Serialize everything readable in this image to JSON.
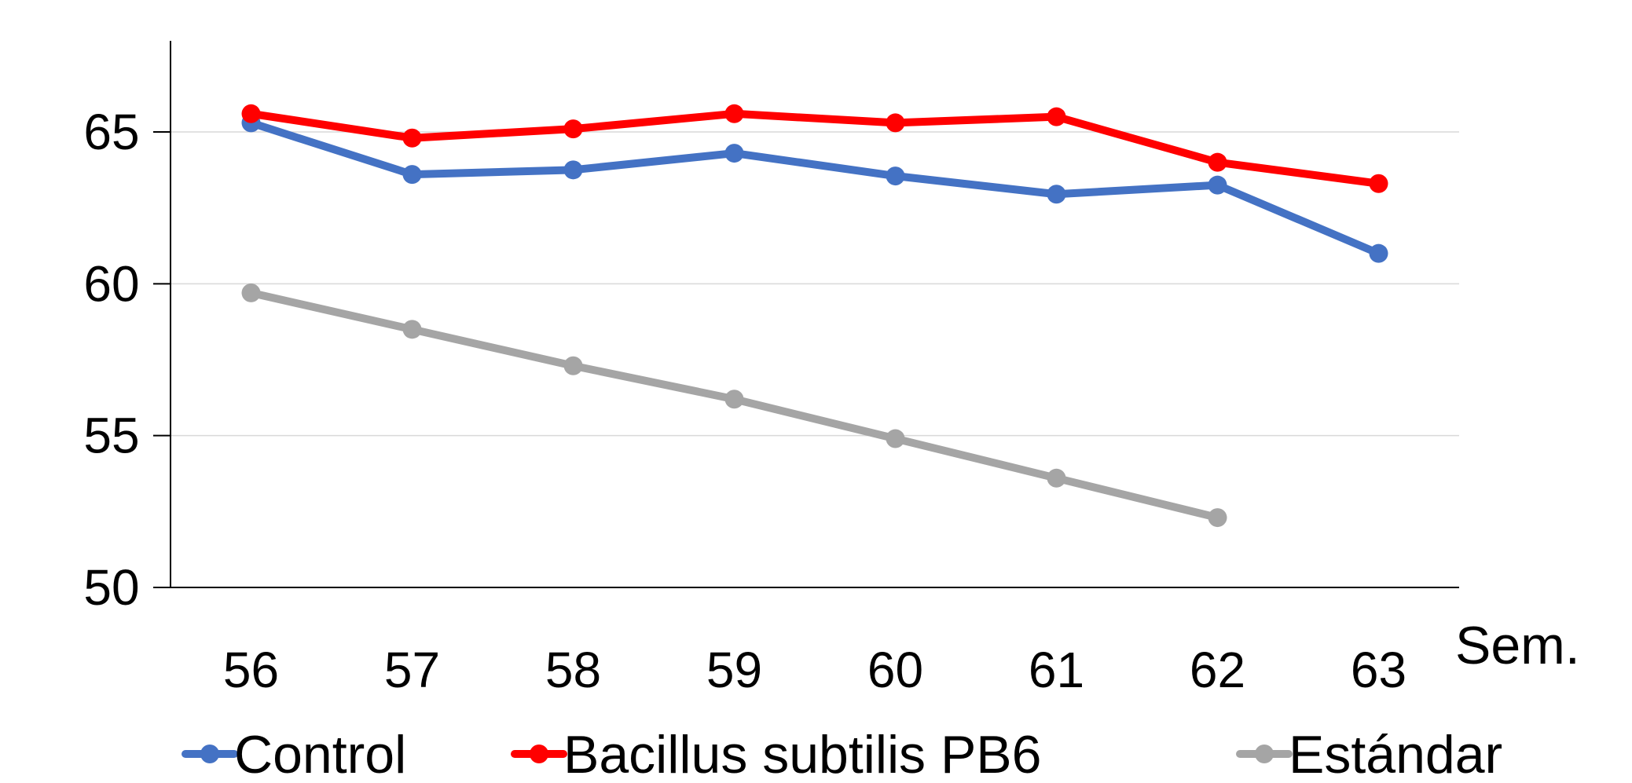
{
  "chart_data": {
    "type": "line",
    "title": "",
    "xlabel": "Sem.",
    "ylabel": "",
    "categories": [
      "56",
      "57",
      "58",
      "59",
      "60",
      "61",
      "62",
      "63"
    ],
    "ylim": [
      50,
      68
    ],
    "yticks": [
      50,
      55,
      60,
      65
    ],
    "grid": true,
    "legend_position": "bottom",
    "series": [
      {
        "name": "Control",
        "color": "#4472C4",
        "values": [
          65.3,
          63.6,
          63.75,
          64.3,
          63.55,
          62.95,
          63.25,
          61.0
        ]
      },
      {
        "name": "Bacillus subtilis PB6",
        "color": "#FF0000",
        "values": [
          65.6,
          64.8,
          65.1,
          65.6,
          65.3,
          65.5,
          64.0,
          63.3
        ]
      },
      {
        "name": "Estándar",
        "color": "#A5A5A5",
        "values": [
          59.7,
          58.5,
          57.3,
          56.2,
          54.9,
          53.6,
          52.3,
          null
        ]
      }
    ]
  }
}
